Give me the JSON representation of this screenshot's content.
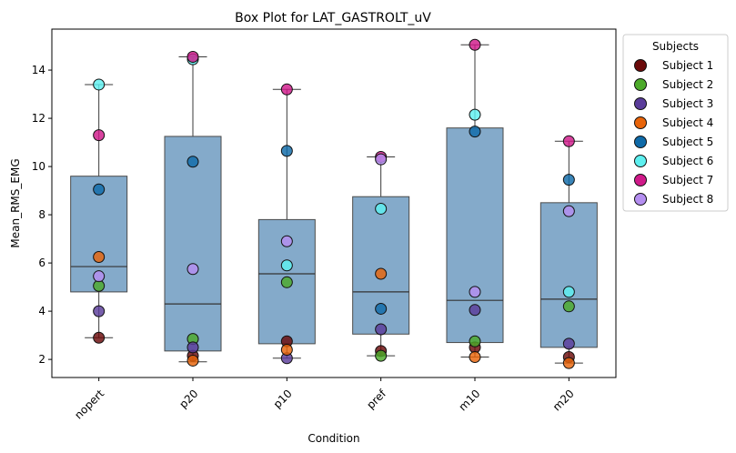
{
  "chart_data": {
    "type": "box",
    "title": "Box Plot for LAT_GASTROLT_uV",
    "xlabel": "Condition",
    "ylabel": "Mean_RMS_EMG",
    "ylim": [
      1.25,
      15.7
    ],
    "yticks": [
      2,
      4,
      6,
      8,
      10,
      12,
      14
    ],
    "categories": [
      "nopert",
      "p20",
      "p10",
      "pref",
      "m10",
      "m20"
    ],
    "box_color": "#5b8db8",
    "boxes": [
      {
        "category": "nopert",
        "whisker_low": 2.9,
        "q1": 4.8,
        "median": 5.85,
        "q3": 9.6,
        "whisker_high": 13.4
      },
      {
        "category": "p20",
        "whisker_low": 1.9,
        "q1": 2.35,
        "median": 4.3,
        "q3": 11.25,
        "whisker_high": 14.55
      },
      {
        "category": "p10",
        "whisker_low": 2.05,
        "q1": 2.65,
        "median": 5.55,
        "q3": 7.8,
        "whisker_high": 13.2
      },
      {
        "category": "pref",
        "whisker_low": 2.15,
        "q1": 3.05,
        "median": 4.8,
        "q3": 8.75,
        "whisker_high": 10.4
      },
      {
        "category": "m10",
        "whisker_low": 2.1,
        "q1": 2.7,
        "median": 4.45,
        "q3": 11.6,
        "whisker_high": 15.05
      },
      {
        "category": "m20",
        "whisker_low": 1.85,
        "q1": 2.5,
        "median": 4.5,
        "q3": 8.5,
        "whisker_high": 11.05
      }
    ],
    "legend": {
      "title": "Subjects",
      "position": "outside-right"
    },
    "series": [
      {
        "name": "Subject 1",
        "color": "#6b0a0a",
        "values": [
          2.9,
          2.15,
          2.75,
          2.35,
          2.5,
          2.1
        ]
      },
      {
        "name": "Subject 2",
        "color": "#4caa2a",
        "values": [
          5.05,
          2.85,
          5.2,
          2.15,
          2.75,
          4.2
        ]
      },
      {
        "name": "Subject 3",
        "color": "#5a3c9a",
        "values": [
          4.0,
          2.5,
          2.05,
          3.25,
          4.05,
          2.65
        ]
      },
      {
        "name": "Subject 4",
        "color": "#e8640a",
        "values": [
          6.25,
          1.95,
          2.4,
          5.55,
          2.1,
          1.85
        ]
      },
      {
        "name": "Subject 5",
        "color": "#0f6aa8",
        "values": [
          9.05,
          10.2,
          10.65,
          4.1,
          11.45,
          9.45
        ]
      },
      {
        "name": "Subject 6",
        "color": "#5ef0f0",
        "values": [
          13.4,
          14.45,
          5.9,
          8.25,
          12.15,
          4.8
        ]
      },
      {
        "name": "Subject 7",
        "color": "#d01a8a",
        "values": [
          11.3,
          14.55,
          13.2,
          10.4,
          15.05,
          11.05
        ]
      },
      {
        "name": "Subject 8",
        "color": "#b48ef0",
        "values": [
          5.45,
          5.75,
          6.9,
          10.3,
          4.8,
          8.15
        ]
      }
    ]
  }
}
